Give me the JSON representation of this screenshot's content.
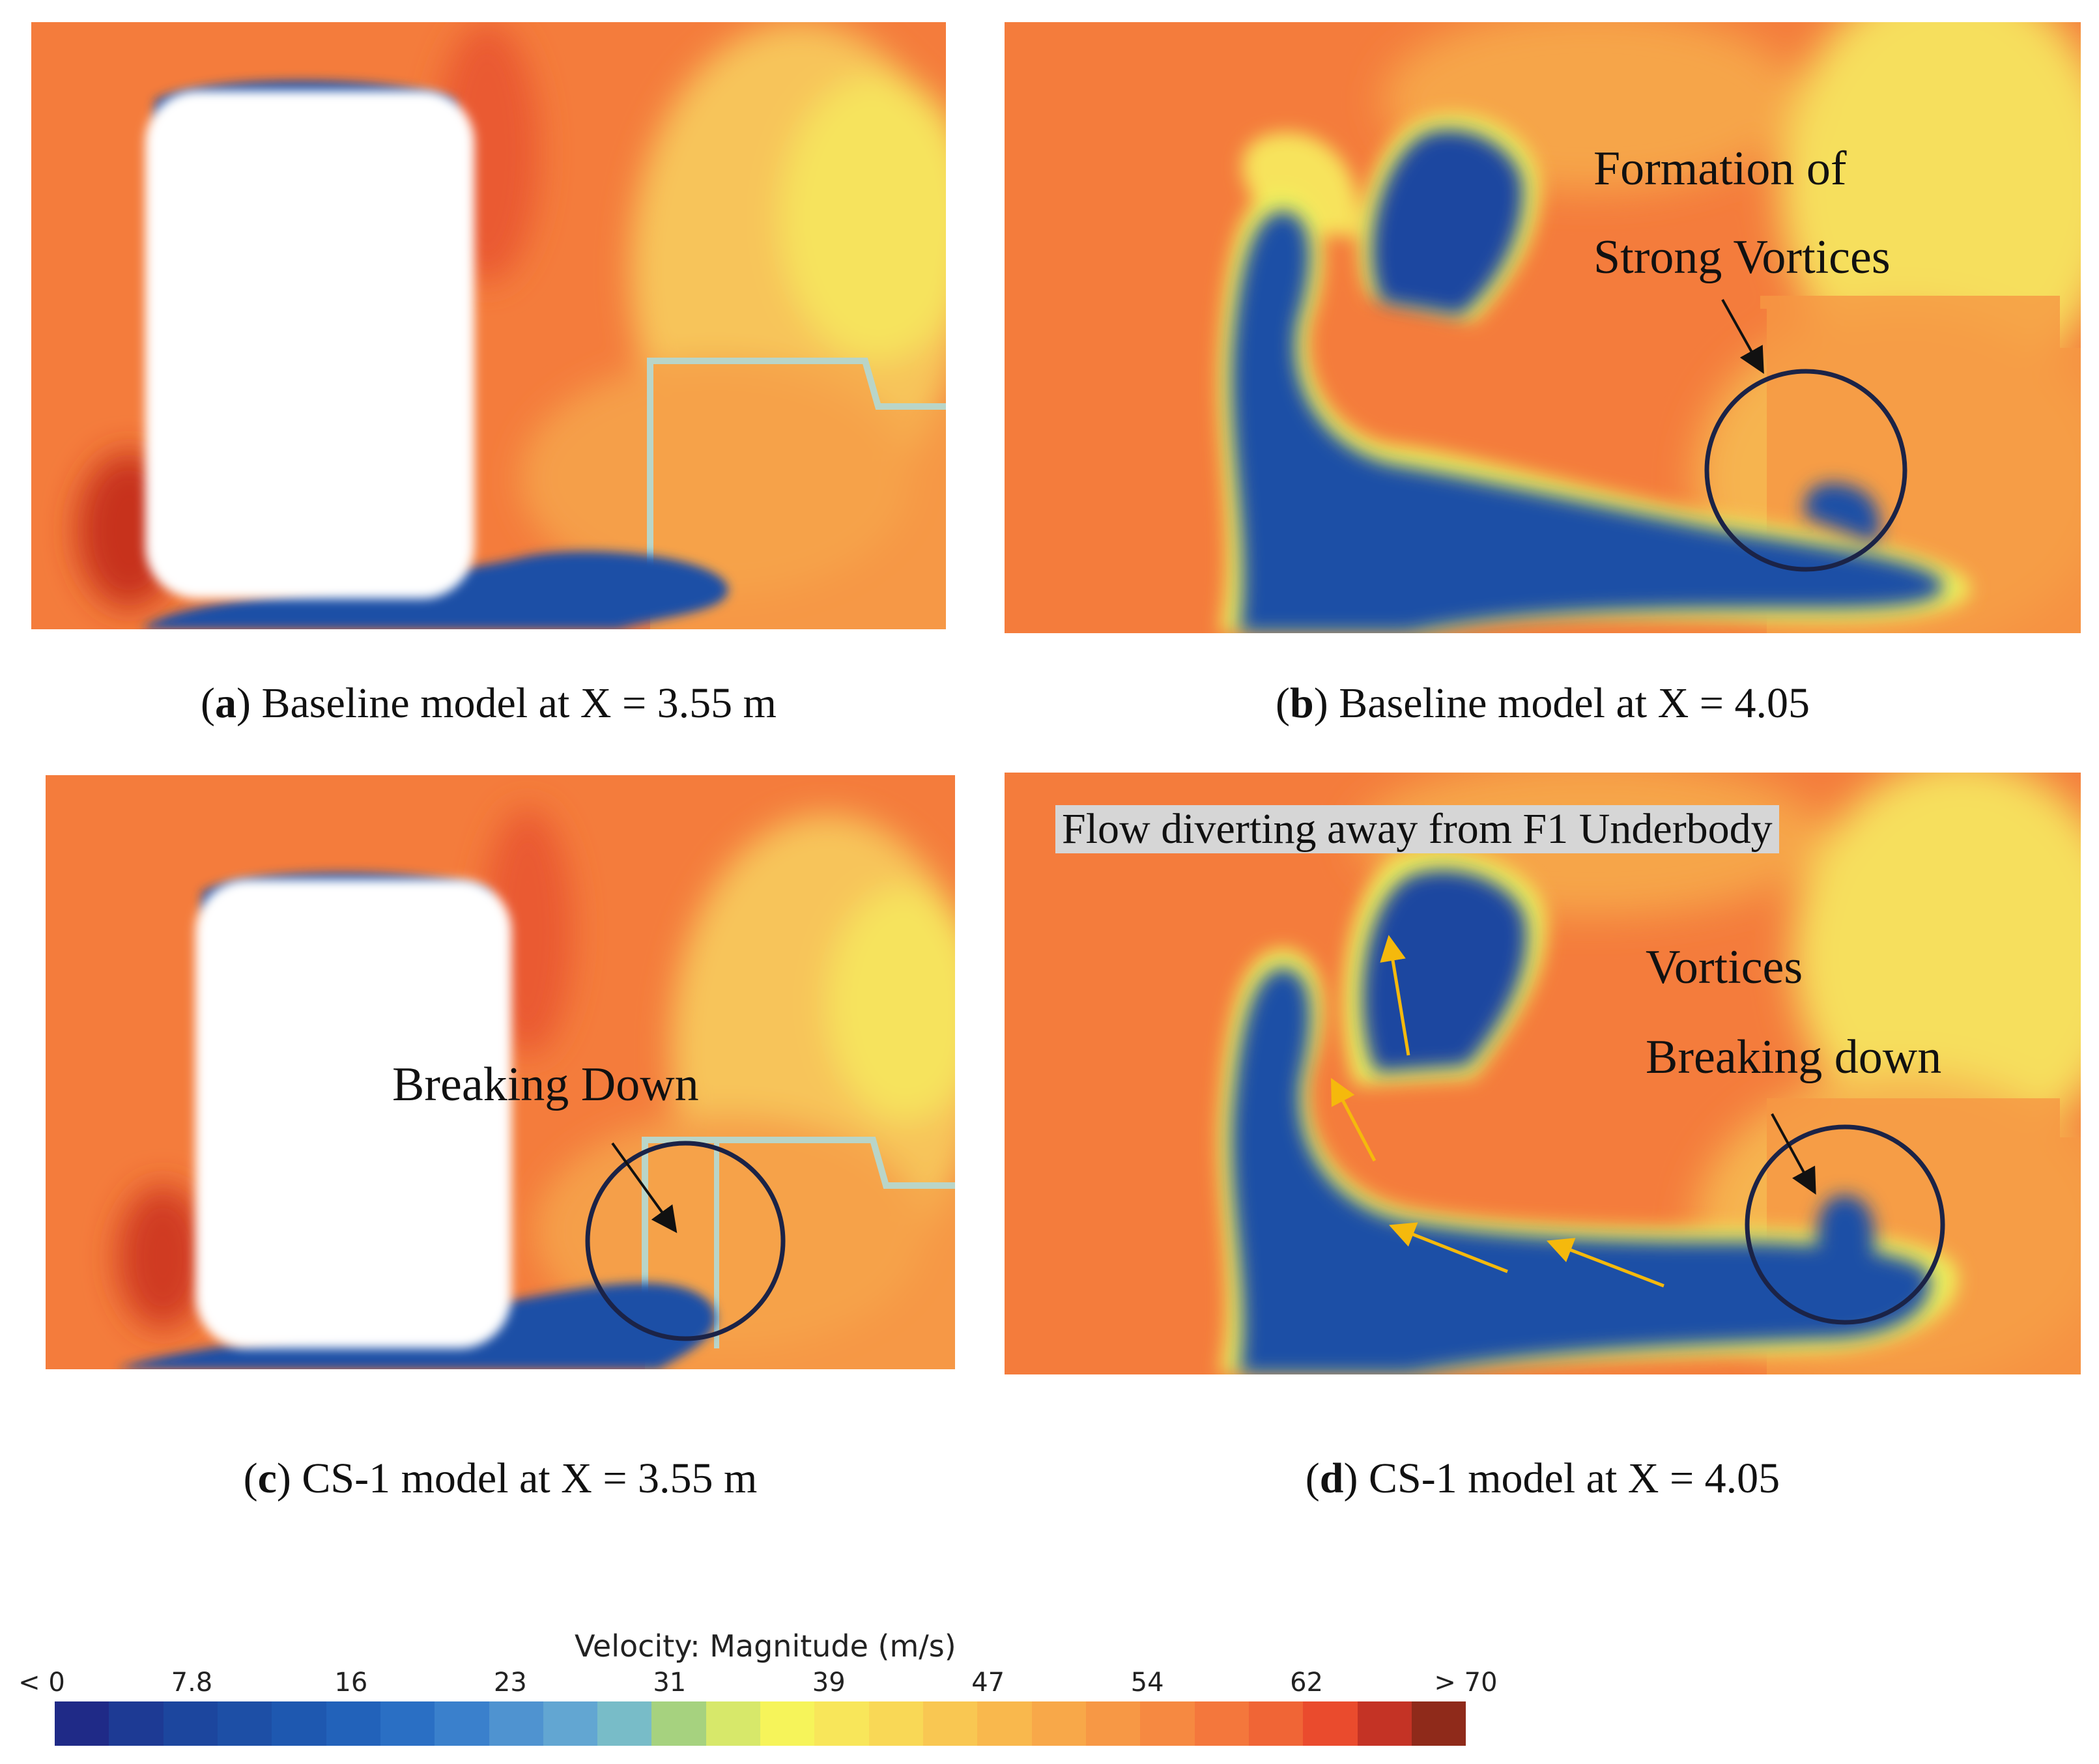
{
  "panels": {
    "a": {
      "letter": "a",
      "caption": "Baseline model at X = 3.55 m"
    },
    "b": {
      "letter": "b",
      "caption": "Baseline model at X = 4.05",
      "annotation_line1": "Formation of",
      "annotation_line2": "Strong Vortices"
    },
    "c": {
      "letter": "c",
      "caption": "CS-1 model at X = 3.55 m",
      "annotation": "Breaking Down"
    },
    "d": {
      "letter": "d",
      "caption": "CS-1 model at X = 4.05",
      "banner": "Flow diverting away from F1 Underbody",
      "annotation_line1": "Vortices",
      "annotation_line2": "Breaking down"
    }
  },
  "legend": {
    "title": "Velocity: Magnitude (m/s)",
    "ticks": [
      "< 0",
      "7.8",
      "16",
      "23",
      "31",
      "39",
      "47",
      "54",
      "62",
      "> 70"
    ],
    "colors": [
      "#1f2a87",
      "#1d3a94",
      "#1c469e",
      "#1d4fa6",
      "#1e58b0",
      "#2262ba",
      "#2a6fc4",
      "#3a80cc",
      "#4f93d0",
      "#62a6d2",
      "#78bcc8",
      "#a6d27f",
      "#d7e86a",
      "#f6f45a",
      "#f8e65a",
      "#f9d856",
      "#f9c752",
      "#f9b84d",
      "#f8a849",
      "#f79845",
      "#f68941",
      "#f4773c",
      "#f06536",
      "#ea4b2d",
      "#c43325",
      "#8f2a1a"
    ]
  },
  "palette": {
    "orange": "#f47c3c",
    "lightorange": "#f59a45",
    "yellow": "#f6d95a",
    "blue": "#1f4fa6",
    "arrow": "#f5b90c"
  }
}
